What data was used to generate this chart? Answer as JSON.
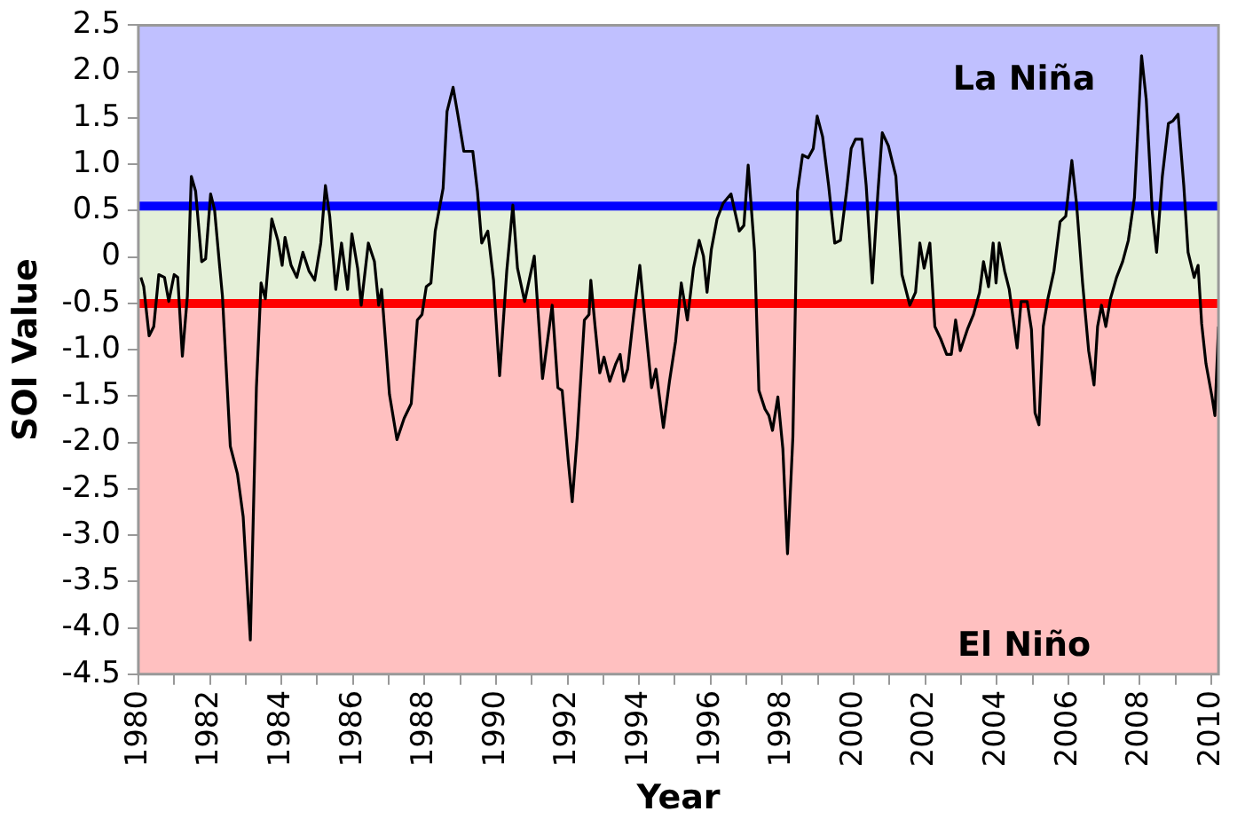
{
  "chart_data": {
    "type": "line",
    "xlabel": "Year",
    "ylabel": "SOI Value",
    "x": [
      1980.07,
      1980.15,
      1980.3,
      1980.43,
      1980.57,
      1980.73,
      1980.85,
      1981,
      1981.1,
      1981.23,
      1981.37,
      1981.48,
      1981.6,
      1981.77,
      1981.88,
      1982.02,
      1982.13,
      1982.27,
      1982.35,
      1982.57,
      1982.77,
      1982.93,
      1983.13,
      1983.3,
      1983.43,
      1983.55,
      1983.73,
      1983.9,
      1984.02,
      1984.1,
      1984.27,
      1984.43,
      1984.6,
      1984.77,
      1984.93,
      1985.1,
      1985.23,
      1985.35,
      1985.52,
      1985.68,
      1985.85,
      1985.97,
      1986.13,
      1986.23,
      1986.43,
      1986.6,
      1986.72,
      1986.8,
      1986.93,
      1987.02,
      1987.23,
      1987.43,
      1987.63,
      1987.8,
      1987.93,
      1988.05,
      1988.18,
      1988.3,
      1988.52,
      1988.63,
      1988.8,
      1988.93,
      1989.1,
      1989.35,
      1989.48,
      1989.6,
      1989.77,
      1989.93,
      1990.1,
      1990.3,
      1990.47,
      1990.6,
      1990.8,
      1991.07,
      1991.3,
      1991.57,
      1991.73,
      1991.85,
      1992.02,
      1992.13,
      1992.27,
      1992.47,
      1992.6,
      1992.65,
      1992.77,
      1992.9,
      1993.02,
      1993.18,
      1993.35,
      1993.47,
      1993.57,
      1993.68,
      1993.85,
      1994.02,
      1994.18,
      1994.35,
      1994.47,
      1994.68,
      1994.85,
      1995.02,
      1995.18,
      1995.35,
      1995.52,
      1995.68,
      1995.8,
      1995.9,
      1996.02,
      1996.18,
      1996.35,
      1996.57,
      1996.8,
      1996.93,
      1997.05,
      1997.23,
      1997.35,
      1997.52,
      1997.63,
      1997.73,
      1997.88,
      1998.02,
      1998.15,
      1998.3,
      1998.43,
      1998.57,
      1998.73,
      1998.87,
      1998.98,
      1999.13,
      1999.3,
      1999.47,
      1999.63,
      1999.8,
      1999.93,
      2000.05,
      2000.23,
      2000.35,
      2000.52,
      2000.68,
      2000.8,
      2000.97,
      2001.18,
      2001.35,
      2001.57,
      2001.73,
      2001.85,
      2001.97,
      2002.13,
      2002.27,
      2002.43,
      2002.6,
      2002.73,
      2002.85,
      2002.98,
      2003.18,
      2003.35,
      2003.52,
      2003.63,
      2003.77,
      2003.9,
      2003.98,
      2004.07,
      2004.22,
      2004.35,
      2004.43,
      2004.57,
      2004.68,
      2004.85,
      2004.97,
      2005.07,
      2005.18,
      2005.3,
      2005.43,
      2005.6,
      2005.77,
      2005.93,
      2006.1,
      2006.23,
      2006.4,
      2006.57,
      2006.72,
      2006.82,
      2006.93,
      2007.05,
      2007.18,
      2007.35,
      2007.52,
      2007.68,
      2007.85,
      2008.05,
      2008.18,
      2008.35,
      2008.47,
      2008.63,
      2008.8,
      2008.93,
      2009.07,
      2009.23,
      2009.35,
      2009.52,
      2009.63,
      2009.73,
      2009.85,
      2010.02,
      2010.1,
      2010.2
    ],
    "series": [
      {
        "color": "#000000",
        "values": [
          -0.22,
          -0.32,
          -0.85,
          -0.75,
          -0.19,
          -0.22,
          -0.48,
          -0.19,
          -0.22,
          -1.07,
          -0.42,
          0.87,
          0.71,
          -0.05,
          -0.02,
          0.68,
          0.51,
          -0.09,
          -0.42,
          -2.04,
          -2.34,
          -2.8,
          -4.13,
          -1.41,
          -0.28,
          -0.45,
          0.41,
          0.18,
          -0.09,
          0.21,
          -0.09,
          -0.22,
          0.05,
          -0.15,
          -0.25,
          0.15,
          0.77,
          0.44,
          -0.35,
          0.15,
          -0.35,
          0.25,
          -0.12,
          -0.52,
          0.15,
          -0.05,
          -0.52,
          -0.35,
          -1.01,
          -1.48,
          -1.97,
          -1.74,
          -1.58,
          -0.68,
          -0.62,
          -0.32,
          -0.28,
          0.28,
          0.74,
          1.57,
          1.83,
          1.54,
          1.14,
          1.14,
          0.71,
          0.15,
          0.28,
          -0.25,
          -1.28,
          -0.15,
          0.56,
          -0.12,
          -0.48,
          0.01,
          -1.31,
          -0.52,
          -1.41,
          -1.44,
          -2.2,
          -2.64,
          -1.94,
          -0.68,
          -0.62,
          -0.25,
          -0.75,
          -1.25,
          -1.08,
          -1.34,
          -1.15,
          -1.05,
          -1.34,
          -1.21,
          -0.62,
          -0.09,
          -0.75,
          -1.41,
          -1.21,
          -1.84,
          -1.34,
          -0.91,
          -0.28,
          -0.68,
          -0.12,
          0.18,
          0.01,
          -0.38,
          0.08,
          0.41,
          0.58,
          0.68,
          0.28,
          0.34,
          0.99,
          0.05,
          -1.44,
          -1.64,
          -1.71,
          -1.87,
          -1.51,
          -2.07,
          -3.2,
          -1.94,
          0.71,
          1.1,
          1.07,
          1.17,
          1.52,
          1.3,
          0.77,
          0.15,
          0.18,
          0.71,
          1.17,
          1.27,
          1.27,
          0.77,
          -0.28,
          0.71,
          1.34,
          1.2,
          0.87,
          -0.19,
          -0.52,
          -0.38,
          0.15,
          -0.12,
          0.15,
          -0.75,
          -0.88,
          -1.05,
          -1.05,
          -0.68,
          -1.01,
          -0.78,
          -0.62,
          -0.38,
          -0.05,
          -0.32,
          0.15,
          -0.28,
          0.15,
          -0.15,
          -0.35,
          -0.58,
          -0.98,
          -0.48,
          -0.48,
          -0.78,
          -1.68,
          -1.81,
          -0.75,
          -0.45,
          -0.15,
          0.38,
          0.44,
          1.04,
          0.58,
          -0.28,
          -1.01,
          -1.38,
          -0.75,
          -0.52,
          -0.75,
          -0.45,
          -0.22,
          -0.05,
          0.18,
          0.64,
          2.17,
          1.7,
          0.48,
          0.05,
          0.87,
          1.44,
          1.47,
          1.54,
          0.77,
          0.05,
          -0.22,
          -0.09,
          -0.72,
          -1.15,
          -1.51,
          -1.71,
          -0.75
        ]
      }
    ],
    "xlim": [
      1980,
      2010.2
    ],
    "xticks": [
      1980,
      {
        "value": 1981,
        "label": null
      },
      1982,
      {
        "value": 1983,
        "label": null
      },
      1984,
      {
        "value": 1985,
        "label": null
      },
      1986,
      {
        "value": 1987,
        "label": null
      },
      1988,
      {
        "value": 1989,
        "label": null
      },
      1990,
      {
        "value": 1991,
        "label": null
      },
      1992,
      {
        "value": 1993,
        "label": null
      },
      1994,
      {
        "value": 1995,
        "label": null
      },
      1996,
      {
        "value": 1997,
        "label": null
      },
      1998,
      {
        "value": 1999,
        "label": null
      },
      2000,
      {
        "value": 2001,
        "label": null
      },
      2002,
      {
        "value": 2003,
        "label": null
      },
      2004,
      {
        "value": 2005,
        "label": null
      },
      2006,
      {
        "value": 2007,
        "label": null
      },
      2008,
      {
        "value": 2009,
        "label": null
      },
      2010
    ],
    "ylim": [
      -4.5,
      2.5
    ],
    "yticks": [
      2.5,
      {
        "value": 2,
        "label": "2.0"
      },
      1.5,
      {
        "value": 1,
        "label": "1.0"
      },
      0.5,
      0,
      -0.5,
      {
        "value": -1,
        "label": "-1.0"
      },
      -1.5,
      {
        "value": -2,
        "label": "-2.0"
      },
      -2.5,
      {
        "value": -3,
        "label": "-3.0"
      },
      -3.5,
      {
        "value": -4,
        "label": "-4.0"
      },
      -4.5
    ],
    "bands": [
      {
        "axis": "y",
        "from": 0.55,
        "to": 2.5,
        "label": "La Niña",
        "color": "#c0c0ff"
      },
      {
        "axis": "y",
        "from": -0.5,
        "to": 0.55,
        "color": "#e4f0d8"
      },
      {
        "axis": "y",
        "from": -4.5,
        "to": -0.5,
        "label": "El Niño",
        "color": "#ffc0c0"
      }
    ],
    "ref_lines": [
      {
        "axis": "y",
        "value": 0.55,
        "color": "#0000ff"
      },
      {
        "axis": "y",
        "value": -0.5,
        "color": "#ff0000"
      }
    ],
    "legend": false,
    "marker": "none",
    "line_style": "solid"
  }
}
